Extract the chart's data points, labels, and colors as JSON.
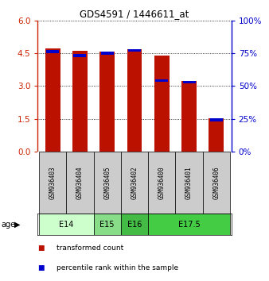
{
  "title": "GDS4591 / 1446611_at",
  "samples": [
    "GSM936403",
    "GSM936404",
    "GSM936405",
    "GSM936402",
    "GSM936400",
    "GSM936401",
    "GSM936406"
  ],
  "red_values": [
    4.72,
    4.62,
    4.57,
    4.68,
    4.38,
    3.22,
    1.52
  ],
  "blue_pct": [
    76,
    73,
    75,
    77,
    54,
    53,
    24
  ],
  "ylim_left": [
    0,
    6
  ],
  "ylim_right": [
    0,
    100
  ],
  "yticks_left": [
    0,
    1.5,
    3,
    4.5,
    6
  ],
  "yticks_right": [
    0,
    25,
    50,
    75,
    100
  ],
  "bar_width": 0.55,
  "red_color": "#bb1100",
  "blue_color": "#0000cc",
  "grid_linestyle": "dotted",
  "sample_row_color": "#cccccc",
  "left_axis_color": "#cc2200",
  "right_axis_color": "#0000cc",
  "age_groups": [
    {
      "label": "E14",
      "start": 0,
      "end": 2,
      "color": "#ccffcc"
    },
    {
      "label": "E15",
      "start": 2,
      "end": 3,
      "color": "#88dd88"
    },
    {
      "label": "E16",
      "start": 3,
      "end": 4,
      "color": "#44bb44"
    },
    {
      "label": "E17.5",
      "start": 4,
      "end": 7,
      "color": "#44cc44"
    }
  ],
  "legend_items": [
    {
      "label": "transformed count",
      "color": "#bb1100"
    },
    {
      "label": "percentile rank within the sample",
      "color": "#0000cc"
    }
  ]
}
